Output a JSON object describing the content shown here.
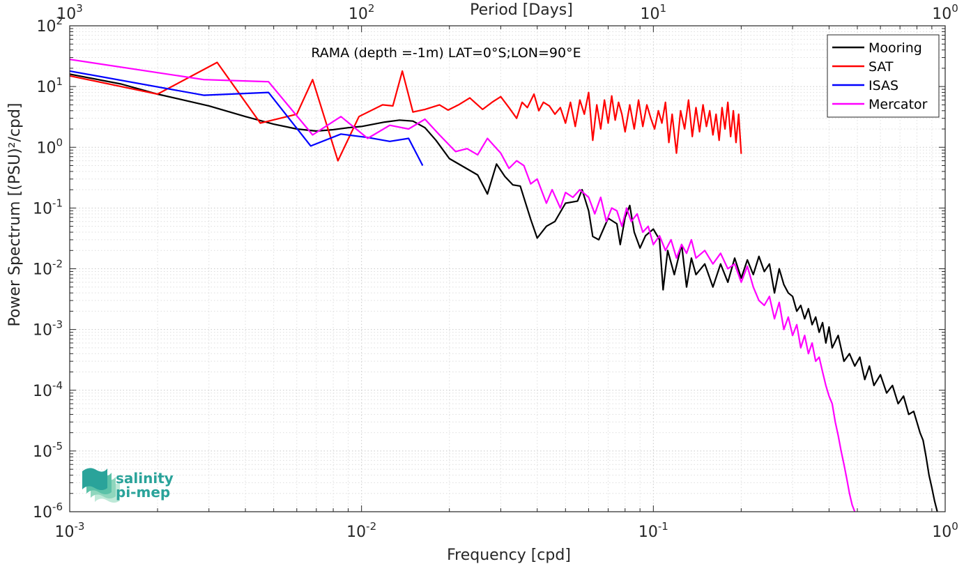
{
  "chart_data": {
    "type": "line",
    "title": "RAMA (depth =-1m) LAT=0°S;LON=90°E",
    "xlabel": "Frequency [cpd]",
    "ylabel": "Power Spectrum [(PSU)²/cpd]",
    "x2label": "Period [Days]",
    "xscale": "log",
    "yscale": "log",
    "xlim": [
      0.001,
      1
    ],
    "ylim": [
      1e-06,
      100
    ],
    "grid": "on (major and minor, dotted)",
    "legend_position": "top-right",
    "x_ticks": [
      {
        "value": 0.001,
        "base": "10",
        "exp": "-3"
      },
      {
        "value": 0.01,
        "base": "10",
        "exp": "-2"
      },
      {
        "value": 0.1,
        "base": "10",
        "exp": "-1"
      },
      {
        "value": 1,
        "base": "10",
        "exp": "0"
      }
    ],
    "x2_ticks": [
      {
        "value": 0.001,
        "base": "10",
        "exp": "3"
      },
      {
        "value": 0.01,
        "base": "10",
        "exp": "2"
      },
      {
        "value": 0.1,
        "base": "10",
        "exp": "1"
      },
      {
        "value": 1,
        "base": "10",
        "exp": "0"
      }
    ],
    "y_ticks": [
      {
        "value": 1e-06,
        "base": "10",
        "exp": "-6"
      },
      {
        "value": 1e-05,
        "base": "10",
        "exp": "-5"
      },
      {
        "value": 0.0001,
        "base": "10",
        "exp": "-4"
      },
      {
        "value": 0.001,
        "base": "10",
        "exp": "-3"
      },
      {
        "value": 0.01,
        "base": "10",
        "exp": "-2"
      },
      {
        "value": 0.1,
        "base": "10",
        "exp": "-1"
      },
      {
        "value": 1,
        "base": "10",
        "exp": "0"
      },
      {
        "value": 10,
        "base": "10",
        "exp": "1"
      },
      {
        "value": 100,
        "base": "10",
        "exp": "2"
      }
    ],
    "series": [
      {
        "name": "Mooring",
        "color": "#000000",
        "points": [
          [
            0.001,
            16
          ],
          [
            0.0015,
            11
          ],
          [
            0.002,
            7.5
          ],
          [
            0.003,
            4.8
          ],
          [
            0.004,
            3.2
          ],
          [
            0.005,
            2.4
          ],
          [
            0.006,
            2.0
          ],
          [
            0.007,
            1.85
          ],
          [
            0.008,
            1.95
          ],
          [
            0.009,
            2.1
          ],
          [
            0.01,
            2.2
          ],
          [
            0.012,
            2.6
          ],
          [
            0.0135,
            2.8
          ],
          [
            0.015,
            2.7
          ],
          [
            0.0165,
            2.1
          ],
          [
            0.018,
            1.3
          ],
          [
            0.02,
            0.65
          ],
          [
            0.022,
            0.5
          ],
          [
            0.025,
            0.35
          ],
          [
            0.027,
            0.17
          ],
          [
            0.029,
            0.53
          ],
          [
            0.031,
            0.33
          ],
          [
            0.033,
            0.24
          ],
          [
            0.035,
            0.23
          ],
          [
            0.038,
            0.065
          ],
          [
            0.04,
            0.032
          ],
          [
            0.043,
            0.05
          ],
          [
            0.046,
            0.06
          ],
          [
            0.05,
            0.12
          ],
          [
            0.055,
            0.13
          ],
          [
            0.057,
            0.2
          ],
          [
            0.06,
            0.09
          ],
          [
            0.062,
            0.034
          ],
          [
            0.065,
            0.03
          ],
          [
            0.07,
            0.068
          ],
          [
            0.075,
            0.055
          ],
          [
            0.077,
            0.025
          ],
          [
            0.08,
            0.07
          ],
          [
            0.083,
            0.11
          ],
          [
            0.086,
            0.04
          ],
          [
            0.09,
            0.022
          ],
          [
            0.094,
            0.035
          ],
          [
            0.1,
            0.045
          ],
          [
            0.105,
            0.03
          ],
          [
            0.108,
            0.0045
          ],
          [
            0.112,
            0.02
          ],
          [
            0.118,
            0.008
          ],
          [
            0.125,
            0.025
          ],
          [
            0.13,
            0.005
          ],
          [
            0.135,
            0.015
          ],
          [
            0.14,
            0.008
          ],
          [
            0.15,
            0.012
          ],
          [
            0.16,
            0.005
          ],
          [
            0.17,
            0.012
          ],
          [
            0.18,
            0.006
          ],
          [
            0.19,
            0.015
          ],
          [
            0.2,
            0.007
          ],
          [
            0.21,
            0.014
          ],
          [
            0.22,
            0.008
          ],
          [
            0.23,
            0.016
          ],
          [
            0.24,
            0.009
          ],
          [
            0.25,
            0.012
          ],
          [
            0.26,
            0.004
          ],
          [
            0.27,
            0.01
          ],
          [
            0.28,
            0.0055
          ],
          [
            0.29,
            0.004
          ],
          [
            0.3,
            0.0035
          ],
          [
            0.31,
            0.002
          ],
          [
            0.32,
            0.0025
          ],
          [
            0.33,
            0.0015
          ],
          [
            0.34,
            0.0022
          ],
          [
            0.35,
            0.0012
          ],
          [
            0.36,
            0.0016
          ],
          [
            0.37,
            0.0009
          ],
          [
            0.38,
            0.0013
          ],
          [
            0.39,
            0.0006
          ],
          [
            0.4,
            0.0011
          ],
          [
            0.41,
            0.0005
          ],
          [
            0.43,
            0.0008
          ],
          [
            0.45,
            0.0003
          ],
          [
            0.47,
            0.0004
          ],
          [
            0.49,
            0.00025
          ],
          [
            0.51,
            0.00035
          ],
          [
            0.53,
            0.00015
          ],
          [
            0.55,
            0.00025
          ],
          [
            0.57,
            0.00012
          ],
          [
            0.6,
            0.00018
          ],
          [
            0.63,
            9e-05
          ],
          [
            0.66,
            0.00012
          ],
          [
            0.69,
            6e-05
          ],
          [
            0.72,
            8e-05
          ],
          [
            0.75,
            4e-05
          ],
          [
            0.78,
            4.5e-05
          ],
          [
            0.8,
            3e-05
          ],
          [
            0.82,
            2e-05
          ],
          [
            0.84,
            1.5e-05
          ],
          [
            0.86,
            8e-06
          ],
          [
            0.88,
            4e-06
          ],
          [
            0.9,
            2.5e-06
          ],
          [
            0.92,
            1.5e-06
          ],
          [
            0.94,
            1e-06
          ]
        ]
      },
      {
        "name": "SAT",
        "color": "#ff0000",
        "points": [
          [
            0.001,
            15
          ],
          [
            0.002,
            7.5
          ],
          [
            0.0032,
            25
          ],
          [
            0.0045,
            2.5
          ],
          [
            0.006,
            3.5
          ],
          [
            0.0068,
            13
          ],
          [
            0.0083,
            0.6
          ],
          [
            0.0098,
            3.2
          ],
          [
            0.0118,
            5.0
          ],
          [
            0.0128,
            4.8
          ],
          [
            0.0138,
            18
          ],
          [
            0.015,
            3.8
          ],
          [
            0.0165,
            4.2
          ],
          [
            0.0185,
            5.0
          ],
          [
            0.0198,
            4.1
          ],
          [
            0.0215,
            5.0
          ],
          [
            0.0235,
            6.5
          ],
          [
            0.026,
            4.2
          ],
          [
            0.028,
            5.5
          ],
          [
            0.03,
            6.8
          ],
          [
            0.032,
            4.5
          ],
          [
            0.034,
            3.0
          ],
          [
            0.0355,
            5.5
          ],
          [
            0.037,
            4.5
          ],
          [
            0.039,
            7.5
          ],
          [
            0.0405,
            4.0
          ],
          [
            0.042,
            5.5
          ],
          [
            0.044,
            4.8
          ],
          [
            0.046,
            3.5
          ],
          [
            0.048,
            4.5
          ],
          [
            0.05,
            2.5
          ],
          [
            0.052,
            5.5
          ],
          [
            0.054,
            2.2
          ],
          [
            0.056,
            6.0
          ],
          [
            0.058,
            3.5
          ],
          [
            0.06,
            8.0
          ],
          [
            0.062,
            1.3
          ],
          [
            0.064,
            5.0
          ],
          [
            0.066,
            2.0
          ],
          [
            0.068,
            6.0
          ],
          [
            0.07,
            2.5
          ],
          [
            0.072,
            7.0
          ],
          [
            0.074,
            2.8
          ],
          [
            0.076,
            5.5
          ],
          [
            0.078,
            3.5
          ],
          [
            0.08,
            1.8
          ],
          [
            0.083,
            5.0
          ],
          [
            0.086,
            2.0
          ],
          [
            0.089,
            6.0
          ],
          [
            0.092,
            2.2
          ],
          [
            0.095,
            5.0
          ],
          [
            0.098,
            3.0
          ],
          [
            0.101,
            2.0
          ],
          [
            0.104,
            4.0
          ],
          [
            0.107,
            2.5
          ],
          [
            0.11,
            5.5
          ],
          [
            0.113,
            1.2
          ],
          [
            0.116,
            3.5
          ],
          [
            0.12,
            0.8
          ],
          [
            0.124,
            4.0
          ],
          [
            0.128,
            2.0
          ],
          [
            0.132,
            6.0
          ],
          [
            0.136,
            1.5
          ],
          [
            0.14,
            4.5
          ],
          [
            0.144,
            1.8
          ],
          [
            0.148,
            5.0
          ],
          [
            0.152,
            2.2
          ],
          [
            0.156,
            4.0
          ],
          [
            0.16,
            1.6
          ],
          [
            0.164,
            3.5
          ],
          [
            0.168,
            1.3
          ],
          [
            0.172,
            4.5
          ],
          [
            0.176,
            2.0
          ],
          [
            0.18,
            5.5
          ],
          [
            0.184,
            1.5
          ],
          [
            0.188,
            4.0
          ],
          [
            0.192,
            1.2
          ],
          [
            0.196,
            3.5
          ],
          [
            0.2,
            0.78
          ]
        ]
      },
      {
        "name": "ISAS",
        "color": "#0000ff",
        "points": [
          [
            0.001,
            18
          ],
          [
            0.00288,
            7.2
          ],
          [
            0.0048,
            8.0
          ],
          [
            0.0067,
            1.05
          ],
          [
            0.0085,
            1.65
          ],
          [
            0.0105,
            1.45
          ],
          [
            0.0125,
            1.25
          ],
          [
            0.0145,
            1.4
          ],
          [
            0.0162,
            0.5
          ]
        ]
      },
      {
        "name": "Mercator",
        "color": "#ff00ff",
        "points": [
          [
            0.001,
            28
          ],
          [
            0.00288,
            13
          ],
          [
            0.0048,
            12
          ],
          [
            0.0068,
            1.6
          ],
          [
            0.0085,
            3.2
          ],
          [
            0.0105,
            1.4
          ],
          [
            0.0125,
            2.3
          ],
          [
            0.0145,
            2.0
          ],
          [
            0.0165,
            2.9
          ],
          [
            0.0185,
            1.6
          ],
          [
            0.021,
            0.85
          ],
          [
            0.023,
            0.95
          ],
          [
            0.025,
            0.75
          ],
          [
            0.027,
            1.4
          ],
          [
            0.03,
            0.8
          ],
          [
            0.032,
            0.45
          ],
          [
            0.034,
            0.6
          ],
          [
            0.036,
            0.5
          ],
          [
            0.038,
            0.25
          ],
          [
            0.04,
            0.3
          ],
          [
            0.043,
            0.12
          ],
          [
            0.045,
            0.2
          ],
          [
            0.048,
            0.1
          ],
          [
            0.05,
            0.18
          ],
          [
            0.053,
            0.15
          ],
          [
            0.056,
            0.2
          ],
          [
            0.06,
            0.15
          ],
          [
            0.063,
            0.08
          ],
          [
            0.066,
            0.15
          ],
          [
            0.069,
            0.06
          ],
          [
            0.072,
            0.1
          ],
          [
            0.075,
            0.09
          ],
          [
            0.078,
            0.05
          ],
          [
            0.081,
            0.1
          ],
          [
            0.084,
            0.06
          ],
          [
            0.088,
            0.08
          ],
          [
            0.092,
            0.04
          ],
          [
            0.096,
            0.05
          ],
          [
            0.1,
            0.025
          ],
          [
            0.105,
            0.035
          ],
          [
            0.11,
            0.02
          ],
          [
            0.115,
            0.03
          ],
          [
            0.12,
            0.015
          ],
          [
            0.125,
            0.025
          ],
          [
            0.13,
            0.018
          ],
          [
            0.135,
            0.03
          ],
          [
            0.14,
            0.015
          ],
          [
            0.15,
            0.02
          ],
          [
            0.16,
            0.012
          ],
          [
            0.17,
            0.018
          ],
          [
            0.18,
            0.01
          ],
          [
            0.19,
            0.012
          ],
          [
            0.2,
            0.006
          ],
          [
            0.21,
            0.011
          ],
          [
            0.22,
            0.005
          ],
          [
            0.23,
            0.003
          ],
          [
            0.24,
            0.0025
          ],
          [
            0.25,
            0.0035
          ],
          [
            0.26,
            0.0015
          ],
          [
            0.27,
            0.0028
          ],
          [
            0.28,
            0.001
          ],
          [
            0.29,
            0.0016
          ],
          [
            0.3,
            0.0008
          ],
          [
            0.31,
            0.0012
          ],
          [
            0.32,
            0.0005
          ],
          [
            0.33,
            0.0008
          ],
          [
            0.34,
            0.0004
          ],
          [
            0.35,
            0.0006
          ],
          [
            0.36,
            0.0003
          ],
          [
            0.37,
            0.00035
          ],
          [
            0.38,
            0.0002
          ],
          [
            0.39,
            0.00012
          ],
          [
            0.4,
            8e-05
          ],
          [
            0.41,
            6e-05
          ],
          [
            0.42,
            3e-05
          ],
          [
            0.43,
            1.8e-05
          ],
          [
            0.44,
            1e-05
          ],
          [
            0.45,
            6e-06
          ],
          [
            0.46,
            3.5e-06
          ],
          [
            0.47,
            2e-06
          ],
          [
            0.48,
            1.3e-06
          ],
          [
            0.49,
            1e-06
          ]
        ]
      }
    ]
  },
  "logo": {
    "line1": "salinity",
    "line2": "pi-mep",
    "colors": [
      "#2aa39a",
      "#5bc2a8",
      "#8fd6bd",
      "#bfe9d8"
    ]
  }
}
